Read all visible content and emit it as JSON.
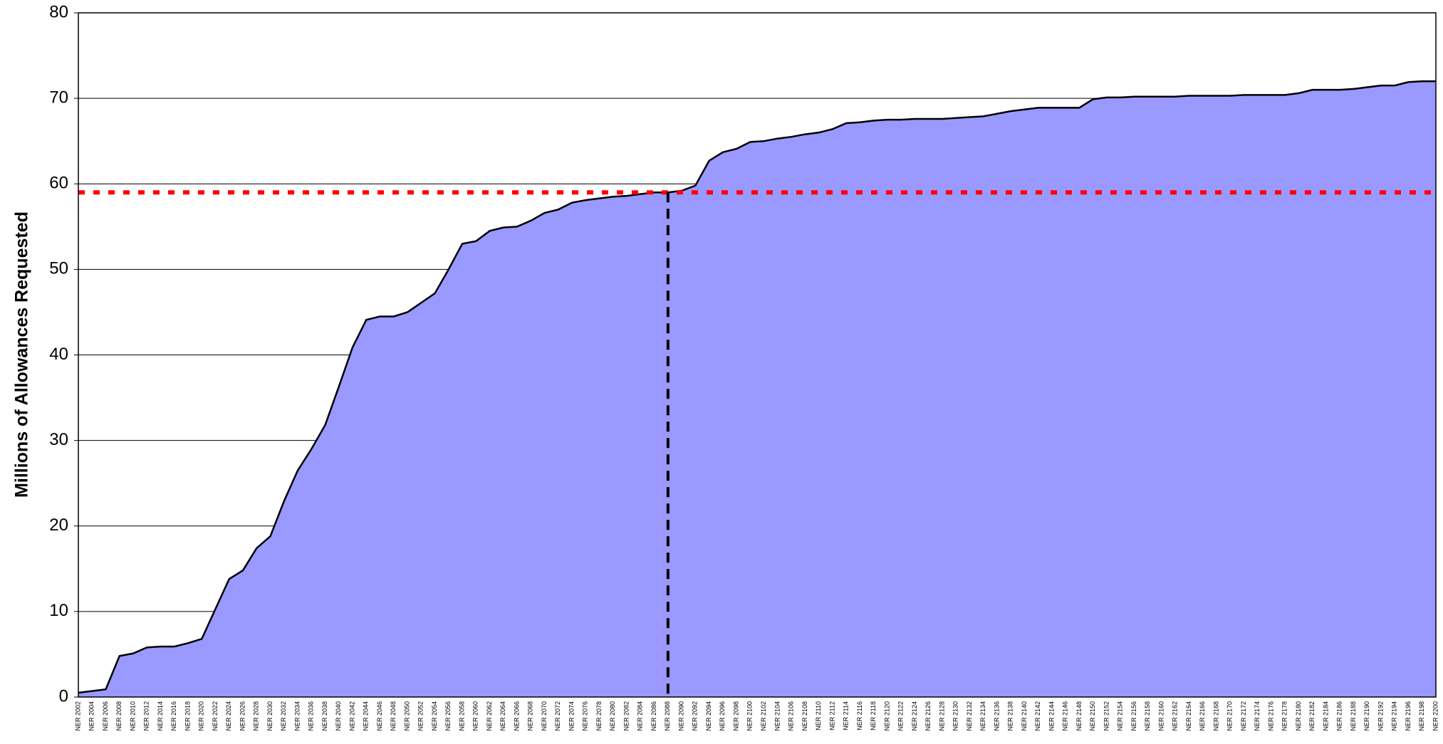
{
  "chart_data": {
    "type": "area",
    "y_axis_label": "Millions of Allowances Requested",
    "categories": [
      "NER 2002",
      "NER 2004",
      "NER 2006",
      "NER 2008",
      "NER 2010",
      "NER 2012",
      "NER 2014",
      "NER 2016",
      "NER 2018",
      "NER 2020",
      "NER 2022",
      "NER 2024",
      "NER 2026",
      "NER 2028",
      "NER 2030",
      "NER 2032",
      "NER 2034",
      "NER 2036",
      "NER 2038",
      "NER 2040",
      "NER 2042",
      "NER 2044",
      "NER 2046",
      "NER 2048",
      "NER 2050",
      "NER 2052",
      "NER 2054",
      "NER 2056",
      "NER 2058",
      "NER 2060",
      "NER 2062",
      "NER 2064",
      "NER 2066",
      "NER 2068",
      "NER 2070",
      "NER 2072",
      "NER 2074",
      "NER 2076",
      "NER 2078",
      "NER 2080",
      "NER 2082",
      "NER 2084",
      "NER 2086",
      "NER 2088",
      "NER 2090",
      "NER 2092",
      "NER 2094",
      "NER 2096",
      "NER 2098",
      "NER 2100",
      "NER 2102",
      "NER 2104",
      "NER 2106",
      "NER 2108",
      "NER 2110",
      "NER 2112",
      "NER 2114",
      "NER 2116",
      "NER 2118",
      "NER 2120",
      "NER 2122",
      "NER 2124",
      "NER 2126",
      "NER 2128",
      "NER 2130",
      "NER 2132",
      "NER 2134",
      "NER 2136",
      "NER 2138",
      "NER 2140",
      "NER 2142",
      "NER 2144",
      "NER 2146",
      "NER 2148",
      "NER 2150",
      "NER 2152",
      "NER 2154",
      "NER 2156",
      "NER 2158",
      "NER 2160",
      "NER 2162",
      "NER 2164",
      "NER 2166",
      "NER 2168",
      "NER 2170",
      "NER 2172",
      "NER 2174",
      "NER 2176",
      "NER 2178",
      "NER 2180",
      "NER 2182",
      "NER 2184",
      "NER 2186",
      "NER 2188",
      "NER 2190",
      "NER 2192",
      "NER 2194",
      "NER 2196",
      "NER 2198",
      "NER 2200"
    ],
    "series": [
      {
        "color": "#9999ff",
        "line_color": "#000000",
        "values": [
          0.5,
          0.7,
          0.9,
          4.8,
          5.1,
          5.8,
          5.9,
          5.9,
          6.3,
          6.8,
          10.3,
          13.8,
          14.8,
          17.4,
          18.8,
          22.9,
          26.5,
          29,
          31.8,
          36.3,
          40.9,
          44.1,
          44.5,
          44.5,
          45,
          46.1,
          47.2,
          50,
          53,
          53.3,
          54.5,
          54.9,
          55,
          55.7,
          56.6,
          57,
          57.8,
          58.1,
          58.3,
          58.5,
          58.6,
          58.8,
          59,
          59,
          59.2,
          59.8,
          62.7,
          63.7,
          64.1,
          64.9,
          65,
          65.3,
          65.5,
          65.8,
          66,
          66.4,
          67.1,
          67.2,
          67.4,
          67.5,
          67.5,
          67.6,
          67.6,
          67.6,
          67.7,
          67.8,
          67.9,
          68.2,
          68.5,
          68.7,
          68.9,
          68.9,
          68.9,
          68.9,
          69.9,
          70.1,
          70.1,
          70.2,
          70.2,
          70.2,
          70.2,
          70.3,
          70.3,
          70.3,
          70.3,
          70.4,
          70.4,
          70.4,
          70.4,
          70.6,
          71,
          71,
          71,
          71.1,
          71.3,
          71.5,
          71.5,
          71.9,
          72,
          72
        ]
      }
    ],
    "ylim": [
      0,
      80
    ],
    "yticks": [
      0,
      10,
      20,
      30,
      40,
      50,
      60,
      70,
      80
    ],
    "grid": true,
    "reference_lines": [
      {
        "axis": "y",
        "value": 59,
        "color": "#ff0000",
        "style": "dotted"
      },
      {
        "axis": "x",
        "category": "NER 2088",
        "color": "#000000",
        "style": "dashed"
      }
    ]
  }
}
